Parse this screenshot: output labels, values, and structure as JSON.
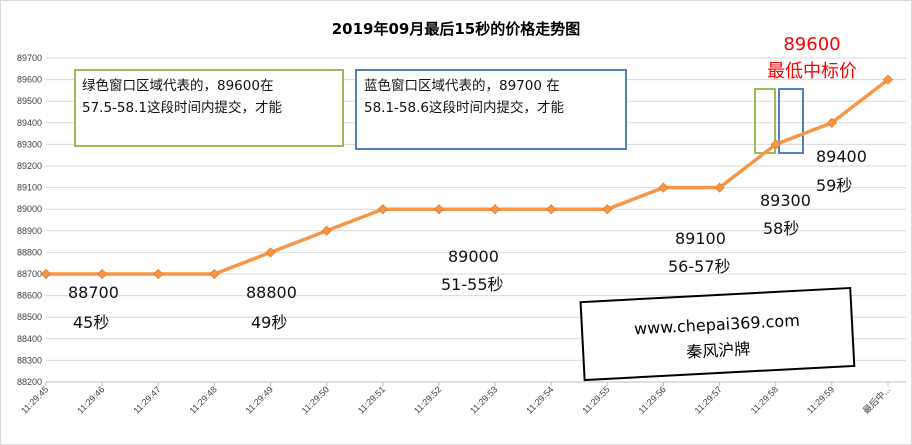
{
  "chart_data": {
    "type": "line",
    "title": "2019年09月最后15秒的价格走势图",
    "categories": [
      "11:29:45",
      "11:29:46",
      "11:29:47",
      "11:29:48",
      "11:29:49",
      "11:29:50",
      "11:29:51",
      "11:29:52",
      "11:29:53",
      "11:29:54",
      "11:29:55",
      "11:29:56",
      "11:29:57",
      "11:29:58",
      "11:29:59",
      "最后中..."
    ],
    "values": [
      88700,
      88700,
      88700,
      88700,
      88800,
      88900,
      89000,
      89000,
      89000,
      89000,
      89000,
      89100,
      89100,
      89300,
      89400,
      89600
    ],
    "ylim": [
      88200,
      89700
    ],
    "yticks": [
      88200,
      88300,
      88400,
      88500,
      88600,
      88700,
      88800,
      88900,
      89000,
      89100,
      89200,
      89300,
      89400,
      89500,
      89600,
      89700
    ],
    "grid": true,
    "line_color": "#f79646",
    "marker_color": "#f79646"
  },
  "annotations": {
    "a1_price": "88700",
    "a1_time": "45秒",
    "a2_price": "88800",
    "a2_time": "49秒",
    "a3_price": "89000",
    "a3_time": "51-55秒",
    "a4_price": "89100",
    "a4_time": "56-57秒",
    "a5_price": "89300",
    "a5_time": "58秒",
    "a6_price": "89400",
    "a6_time": "59秒",
    "lowest_price": "89600",
    "lowest_label": "最低中标价",
    "lowest_color": "#ff0000"
  },
  "boxes": {
    "green_line1": "绿色窗口区域代表的，89600在",
    "green_line2": "57.5-58.1这段时间内提交，才能",
    "green_color": "#9bbb59",
    "blue_line1": "蓝色窗口区域代表的，89700 在",
    "blue_line2": "58.1-58.6这段时间内提交，才能",
    "blue_color": "#4f81bd"
  },
  "watermark": {
    "url": "www.chepai369.com",
    "name": "秦风沪牌"
  }
}
